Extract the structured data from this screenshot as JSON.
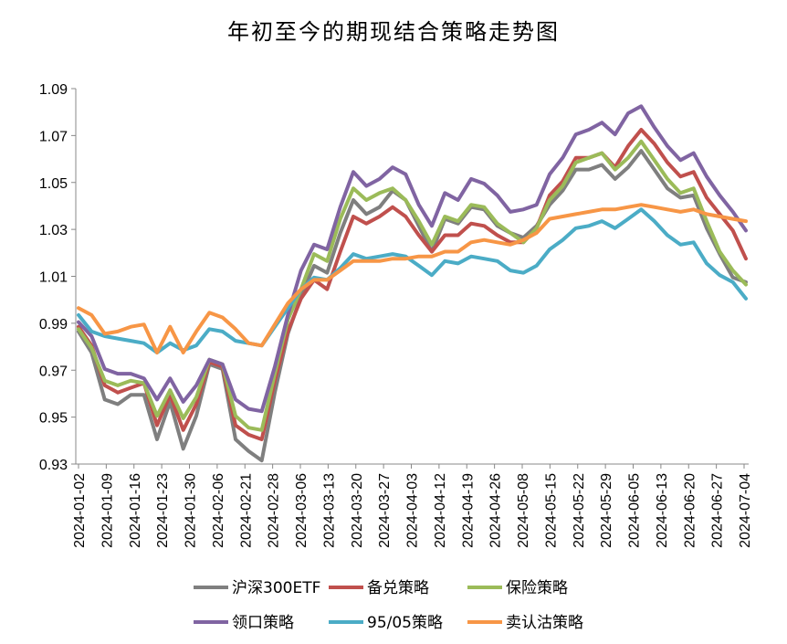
{
  "chart_data": {
    "type": "line",
    "title": "年初至今的期现结合策略走势图",
    "ylim": [
      0.93,
      1.09
    ],
    "yticks": [
      "1.09",
      "1.07",
      "1.05",
      "1.03",
      "1.01",
      "0.99",
      "0.97",
      "0.95",
      "0.93"
    ],
    "ytick_values": [
      1.09,
      1.07,
      1.05,
      1.03,
      1.01,
      0.99,
      0.97,
      0.95,
      0.93
    ],
    "xticks": [
      "2024-01-02",
      "2024-01-09",
      "2024-01-16",
      "2024-01-23",
      "2024-01-30",
      "2024-02-06",
      "2024-02-21",
      "2024-02-28",
      "2024-03-06",
      "2024-03-13",
      "2024-03-20",
      "2024-03-27",
      "2024-04-03",
      "2024-04-12",
      "2024-04-19",
      "2024-04-26",
      "2024-05-08",
      "2024-05-15",
      "2024-05-22",
      "2024-05-29",
      "2024-06-05",
      "2024-06-13",
      "2024-06-20",
      "2024-06-27",
      "2024-07-04"
    ],
    "grid": false,
    "legend_position": "bottom",
    "series": [
      {
        "name": "沪深300ETF",
        "color": "#7f7f7f",
        "values": [
          0.9865,
          0.9775,
          0.9575,
          0.9555,
          0.9595,
          0.9595,
          0.9405,
          0.9565,
          0.9365,
          0.9505,
          0.9725,
          0.9705,
          0.9405,
          0.9355,
          0.9315,
          0.9605,
          0.9855,
          1.0015,
          1.0145,
          1.0115,
          1.0285,
          1.0425,
          1.0365,
          1.0395,
          1.0465,
          1.0425,
          1.0315,
          1.0205,
          1.0345,
          1.0325,
          1.0395,
          1.0385,
          1.0315,
          1.0285,
          1.0265,
          1.0315,
          1.0405,
          1.0465,
          1.0555,
          1.0555,
          1.0575,
          1.0515,
          1.0565,
          1.0635,
          1.0555,
          1.0475,
          1.0435,
          1.0445,
          1.0305,
          1.0195,
          1.0095,
          1.0075
        ]
      },
      {
        "name": "备兑策略",
        "color": "#c0504d",
        "values": [
          0.9885,
          0.9805,
          0.9635,
          0.9605,
          0.9625,
          0.9645,
          0.9465,
          0.9595,
          0.9445,
          0.9555,
          0.9735,
          0.9715,
          0.9465,
          0.9425,
          0.9405,
          0.9655,
          0.9865,
          1.0005,
          1.0085,
          1.0045,
          1.0205,
          1.0355,
          1.0325,
          1.0355,
          1.0395,
          1.0355,
          1.0275,
          1.0205,
          1.0275,
          1.0275,
          1.0325,
          1.0315,
          1.0275,
          1.0245,
          1.0245,
          1.0305,
          1.0445,
          1.0505,
          1.0605,
          1.0605,
          1.0625,
          1.0565,
          1.0655,
          1.0725,
          1.0665,
          1.0585,
          1.0525,
          1.0545,
          1.0435,
          1.0365,
          1.0295,
          1.0175
        ]
      },
      {
        "name": "保险策略",
        "color": "#9bbb59",
        "values": [
          0.9875,
          0.9795,
          0.9655,
          0.9635,
          0.9655,
          0.9645,
          0.9505,
          0.9615,
          0.9495,
          0.9585,
          0.9745,
          0.9725,
          0.9505,
          0.9455,
          0.9445,
          0.9685,
          0.9915,
          1.0045,
          1.0195,
          1.0165,
          1.0345,
          1.0475,
          1.0425,
          1.0455,
          1.0475,
          1.0425,
          1.0335,
          1.0235,
          1.0355,
          1.0335,
          1.0405,
          1.0395,
          1.0325,
          1.0285,
          1.0245,
          1.0305,
          1.0425,
          1.0485,
          1.0585,
          1.0605,
          1.0625,
          1.0555,
          1.0605,
          1.0675,
          1.0595,
          1.0515,
          1.0455,
          1.0475,
          1.0335,
          1.0205,
          1.0125,
          1.0065
        ]
      },
      {
        "name": "领口策略",
        "color": "#8064a2",
        "values": [
          0.9905,
          0.9845,
          0.9705,
          0.9685,
          0.9685,
          0.9665,
          0.9575,
          0.9665,
          0.9565,
          0.9635,
          0.9745,
          0.9725,
          0.9575,
          0.9535,
          0.9525,
          0.9715,
          0.9935,
          1.0125,
          1.0235,
          1.0215,
          1.0395,
          1.0545,
          1.0485,
          1.0515,
          1.0565,
          1.0535,
          1.0405,
          1.0315,
          1.0455,
          1.0425,
          1.0515,
          1.0495,
          1.0445,
          1.0375,
          1.0385,
          1.0405,
          1.0535,
          1.0605,
          1.0705,
          1.0725,
          1.0755,
          1.0705,
          1.0795,
          1.0825,
          1.0735,
          1.0655,
          1.0595,
          1.0625,
          1.0525,
          1.0445,
          1.0375,
          1.0295
        ]
      },
      {
        "name": "95/05策略",
        "color": "#4bacc6",
        "values": [
          0.9935,
          0.9865,
          0.9845,
          0.9835,
          0.9825,
          0.9815,
          0.9775,
          0.9815,
          0.9785,
          0.9805,
          0.9875,
          0.9865,
          0.9825,
          0.9815,
          0.9805,
          0.9885,
          0.9965,
          1.0045,
          1.0095,
          1.0085,
          1.0135,
          1.0195,
          1.0175,
          1.0185,
          1.0195,
          1.0185,
          1.0145,
          1.0105,
          1.0165,
          1.0155,
          1.0185,
          1.0175,
          1.0165,
          1.0125,
          1.0115,
          1.0145,
          1.0215,
          1.0255,
          1.0305,
          1.0315,
          1.0335,
          1.0305,
          1.0345,
          1.0385,
          1.0335,
          1.0275,
          1.0235,
          1.0245,
          1.0155,
          1.0105,
          1.0075,
          1.0005
        ]
      },
      {
        "name": "卖认沽策略",
        "color": "#f79646",
        "values": [
          0.9965,
          0.9935,
          0.9855,
          0.9865,
          0.9885,
          0.9895,
          0.9775,
          0.9885,
          0.9775,
          0.9865,
          0.9945,
          0.9925,
          0.9875,
          0.9815,
          0.9805,
          0.9895,
          0.9985,
          1.0045,
          1.0085,
          1.0085,
          1.0125,
          1.0165,
          1.0165,
          1.0165,
          1.0175,
          1.0175,
          1.0185,
          1.0185,
          1.0205,
          1.0205,
          1.0245,
          1.0255,
          1.0245,
          1.0235,
          1.0255,
          1.0285,
          1.0345,
          1.0355,
          1.0365,
          1.0375,
          1.0385,
          1.0385,
          1.0395,
          1.0405,
          1.0395,
          1.0385,
          1.0375,
          1.0385,
          1.0365,
          1.0355,
          1.0345,
          1.0335
        ]
      }
    ]
  }
}
